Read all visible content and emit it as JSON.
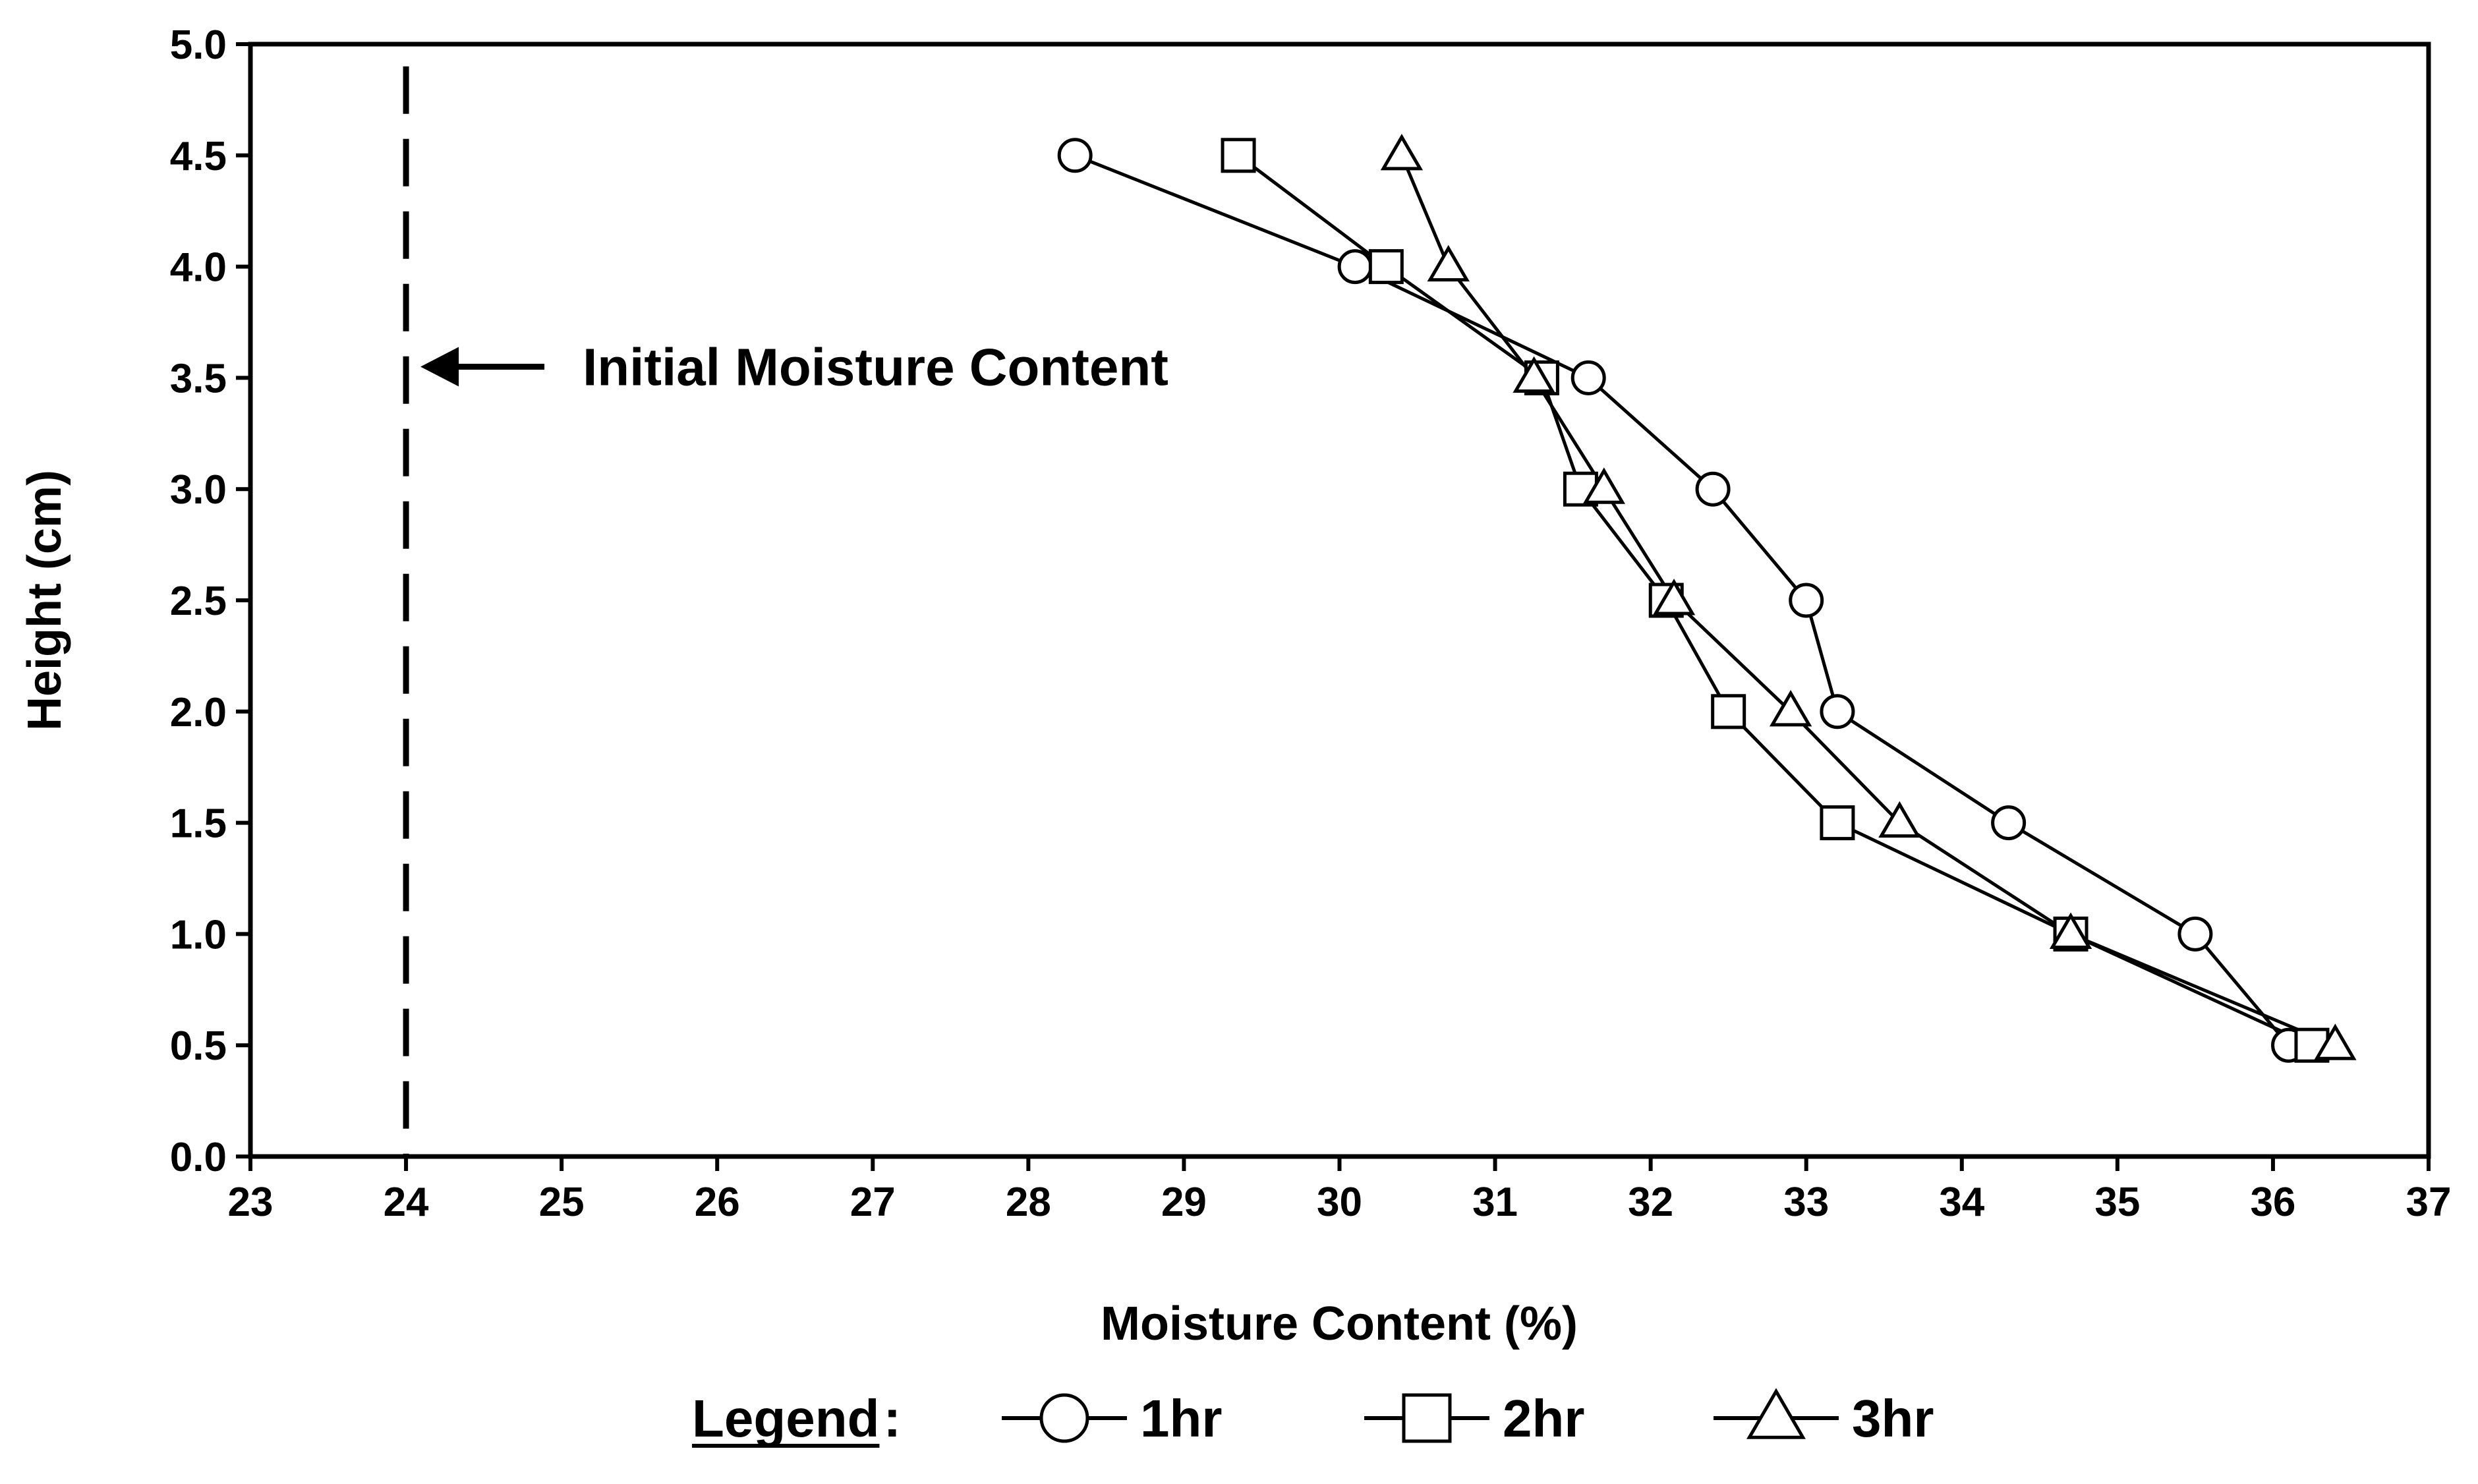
{
  "chart_data": {
    "type": "line",
    "title": "",
    "xlabel": "Moisture Content (%)",
    "ylabel": "Height (cm)",
    "xlim": [
      23,
      37
    ],
    "ylim": [
      0.0,
      5.0
    ],
    "xticks": [
      "23",
      "24",
      "25",
      "26",
      "27",
      "28",
      "29",
      "30",
      "31",
      "32",
      "33",
      "34",
      "35",
      "36",
      "37"
    ],
    "yticks": [
      "0.0",
      "0.5",
      "1.0",
      "1.5",
      "2.0",
      "2.5",
      "3.0",
      "3.5",
      "4.0",
      "4.5",
      "5.0"
    ],
    "grid": false,
    "legend_position": "bottom",
    "legend_heading": "Legend",
    "legend_colon": ":",
    "series": [
      {
        "name": "1hr",
        "marker": "circle",
        "x": [
          28.3,
          30.1,
          31.6,
          32.4,
          33.0,
          33.2,
          34.3,
          35.5,
          36.1
        ],
        "y": [
          4.5,
          4.0,
          3.5,
          3.0,
          2.5,
          2.0,
          1.5,
          1.0,
          0.5
        ]
      },
      {
        "name": "2hr",
        "marker": "square",
        "x": [
          29.35,
          30.3,
          31.3,
          31.55,
          32.1,
          32.5,
          33.2,
          34.7,
          36.25
        ],
        "y": [
          4.5,
          4.0,
          3.5,
          3.0,
          2.5,
          2.0,
          1.5,
          1.0,
          0.5
        ]
      },
      {
        "name": "3hr",
        "marker": "triangle",
        "x": [
          30.4,
          30.7,
          31.25,
          31.7,
          32.15,
          32.9,
          33.6,
          34.7,
          36.4
        ],
        "y": [
          4.5,
          4.0,
          3.5,
          3.0,
          2.5,
          2.0,
          1.5,
          1.0,
          0.5
        ]
      }
    ],
    "reference_line": {
      "x": 24,
      "style": "dashed",
      "label": "Initial Moisture Content",
      "label_y": 3.55
    },
    "colors": {
      "line": "#000000",
      "marker_fill": "#ffffff",
      "background": "#ffffff"
    }
  }
}
